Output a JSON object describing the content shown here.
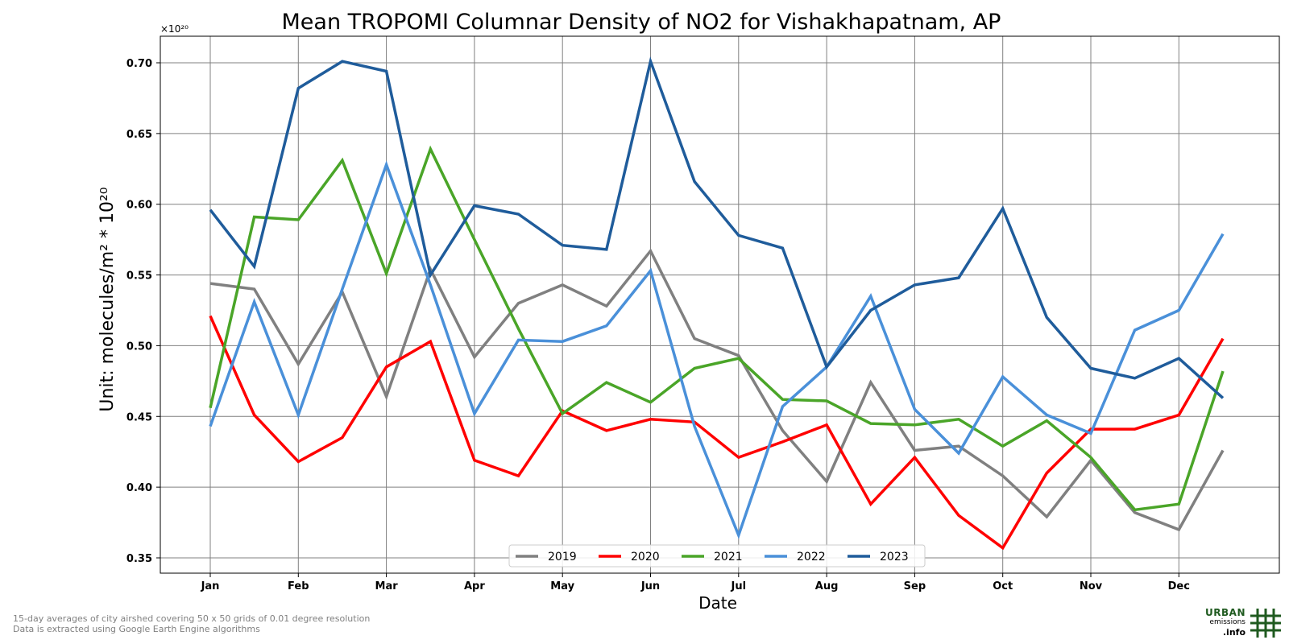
{
  "chart_data": {
    "type": "line",
    "title": "Mean TROPOMI Columnar Density of NO2 for Vishakhapatnam, AP",
    "xlabel": "Date",
    "ylabel": "Unit: molecules/m² * 10²⁰",
    "y_scale_note": "×10²⁰",
    "ylim": [
      0.34,
      0.72
    ],
    "y_ticks": [
      0.35,
      0.4,
      0.45,
      0.5,
      0.55,
      0.6,
      0.65,
      0.7
    ],
    "y_tick_labels": [
      "0.35",
      "0.40",
      "0.45",
      "0.50",
      "0.55",
      "0.60",
      "0.65",
      "0.70"
    ],
    "x_tick_labels": [
      "Jan",
      "Feb",
      "Mar",
      "Apr",
      "May",
      "Jun",
      "Jul",
      "Aug",
      "Sep",
      "Oct",
      "Nov",
      "Dec"
    ],
    "x_periods": [
      "Jan 1",
      "Jan 16",
      "Feb 1",
      "Feb 16",
      "Mar 1",
      "Mar 16",
      "Apr 1",
      "Apr 16",
      "May 1",
      "May 16",
      "Jun 1",
      "Jun 16",
      "Jul 1",
      "Jul 16",
      "Aug 1",
      "Aug 16",
      "Sep 1",
      "Sep 16",
      "Oct 1",
      "Oct 16",
      "Nov 1",
      "Nov 16",
      "Dec 1",
      "Dec 16"
    ],
    "grid": true,
    "legend_position": "bottom-center",
    "series": [
      {
        "name": "2019",
        "color": "#808080",
        "values": [
          0.544,
          0.54,
          0.487,
          0.538,
          0.464,
          0.554,
          0.492,
          0.53,
          0.543,
          0.528,
          0.567,
          0.505,
          0.493,
          0.44,
          0.404,
          0.474,
          0.426,
          0.429,
          0.408,
          0.379,
          0.419,
          0.382,
          0.37,
          0.426
        ]
      },
      {
        "name": "2020",
        "color": "#ff0000",
        "values": [
          0.521,
          0.451,
          0.418,
          0.435,
          0.485,
          0.503,
          0.419,
          0.408,
          0.454,
          0.44,
          0.448,
          0.446,
          0.421,
          0.432,
          0.444,
          0.388,
          0.421,
          0.38,
          0.357,
          0.41,
          0.441,
          0.441,
          0.451,
          0.505
        ]
      },
      {
        "name": "2021",
        "color": "#4aa528",
        "values": [
          0.456,
          0.591,
          0.589,
          0.631,
          0.551,
          0.639,
          0.575,
          0.512,
          0.452,
          0.474,
          0.46,
          0.484,
          0.491,
          0.462,
          0.461,
          0.445,
          0.444,
          0.448,
          0.429,
          0.447,
          0.421,
          0.384,
          0.388,
          0.482
        ]
      },
      {
        "name": "2022",
        "color": "#4a90d9",
        "values": [
          0.443,
          0.531,
          0.451,
          0.54,
          0.628,
          0.543,
          0.452,
          0.504,
          0.503,
          0.514,
          0.553,
          0.443,
          0.366,
          0.457,
          0.485,
          0.535,
          0.455,
          0.424,
          0.478,
          0.451,
          0.438,
          0.511,
          0.525,
          0.579
        ]
      },
      {
        "name": "2023",
        "color": "#1f5c9b",
        "values": [
          0.596,
          0.556,
          0.682,
          0.701,
          0.694,
          0.55,
          0.599,
          0.593,
          0.571,
          0.568,
          0.701,
          0.616,
          0.578,
          0.569,
          0.485,
          0.525,
          0.543,
          0.548,
          0.597,
          0.52,
          0.484,
          0.477,
          0.491,
          0.463
        ]
      }
    ]
  },
  "footnotes": {
    "line1": "15-day averages of city airshed covering 50 x 50 grids of 0.01 degree resolution",
    "line2": "Data is extracted using Google Earth Engine algorithms"
  },
  "logo": {
    "word1": "URBAN",
    "word2": "emissions",
    "word3": ".info",
    "color": "#1f5a1f"
  }
}
